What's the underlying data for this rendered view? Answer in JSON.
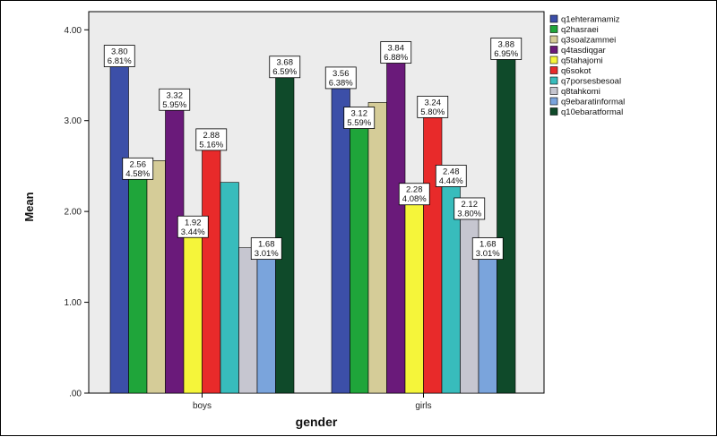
{
  "chart_data": {
    "type": "bar",
    "title": "",
    "xlabel": "gender",
    "ylabel": "Mean",
    "ylim": [
      0,
      4.2
    ],
    "yticks": [
      ".00",
      "1.00",
      "2.00",
      "3.00",
      "4.00"
    ],
    "ytick_values": [
      0,
      1,
      2,
      3,
      4
    ],
    "categories": [
      "boys",
      "girls"
    ],
    "legend_position": "right",
    "series": [
      {
        "name": "q1ehteramamiz",
        "color": "#3c4fa8",
        "values": [
          3.8,
          3.56
        ],
        "labels": [
          [
            "3.80",
            "6.81%"
          ],
          [
            "3.56",
            "6.38%"
          ]
        ]
      },
      {
        "name": "q2hasraei",
        "color": "#1fa53a",
        "values": [
          2.56,
          3.12
        ],
        "labels": [
          [
            "2.56",
            "4.58%"
          ],
          [
            "3.12",
            "5.59%"
          ]
        ]
      },
      {
        "name": "q3soalzammei",
        "color": "#d5cc98",
        "values": [
          2.56,
          3.2
        ],
        "labels": [
          null,
          null
        ]
      },
      {
        "name": "q4tasdiqgar",
        "color": "#6a1a7a",
        "values": [
          3.32,
          3.84
        ],
        "labels": [
          [
            "3.32",
            "5.95%"
          ],
          [
            "3.84",
            "6.88%"
          ]
        ]
      },
      {
        "name": "q5tahajomi",
        "color": "#f5f53a",
        "values": [
          1.92,
          2.28
        ],
        "labels": [
          [
            "1.92",
            "3.44%"
          ],
          [
            "2.28",
            "4.08%"
          ]
        ]
      },
      {
        "name": "q6sokot",
        "color": "#e82a2a",
        "values": [
          2.88,
          3.24
        ],
        "labels": [
          [
            "2.88",
            "5.16%"
          ],
          [
            "3.24",
            "5.80%"
          ]
        ]
      },
      {
        "name": "q7porsesbesoal",
        "color": "#38bcbc",
        "values": [
          2.32,
          2.48
        ],
        "labels": [
          null,
          [
            "2.48",
            "4.44%"
          ]
        ]
      },
      {
        "name": "q8tahkomi",
        "color": "#c6c6d0",
        "values": [
          1.6,
          2.12
        ],
        "labels": [
          null,
          [
            "2.12",
            "3.80%"
          ]
        ]
      },
      {
        "name": "q9ebaratinformal",
        "color": "#7aa4dc",
        "values": [
          1.68,
          1.68
        ],
        "labels": [
          [
            "1.68",
            "3.01%"
          ],
          [
            "1.68",
            "3.01%"
          ]
        ]
      },
      {
        "name": "q10ebaratformal",
        "color": "#0f4a2a",
        "values": [
          3.68,
          3.88
        ],
        "labels": [
          [
            "3.68",
            "6.59%"
          ],
          [
            "3.88",
            "6.95%"
          ]
        ]
      }
    ]
  }
}
